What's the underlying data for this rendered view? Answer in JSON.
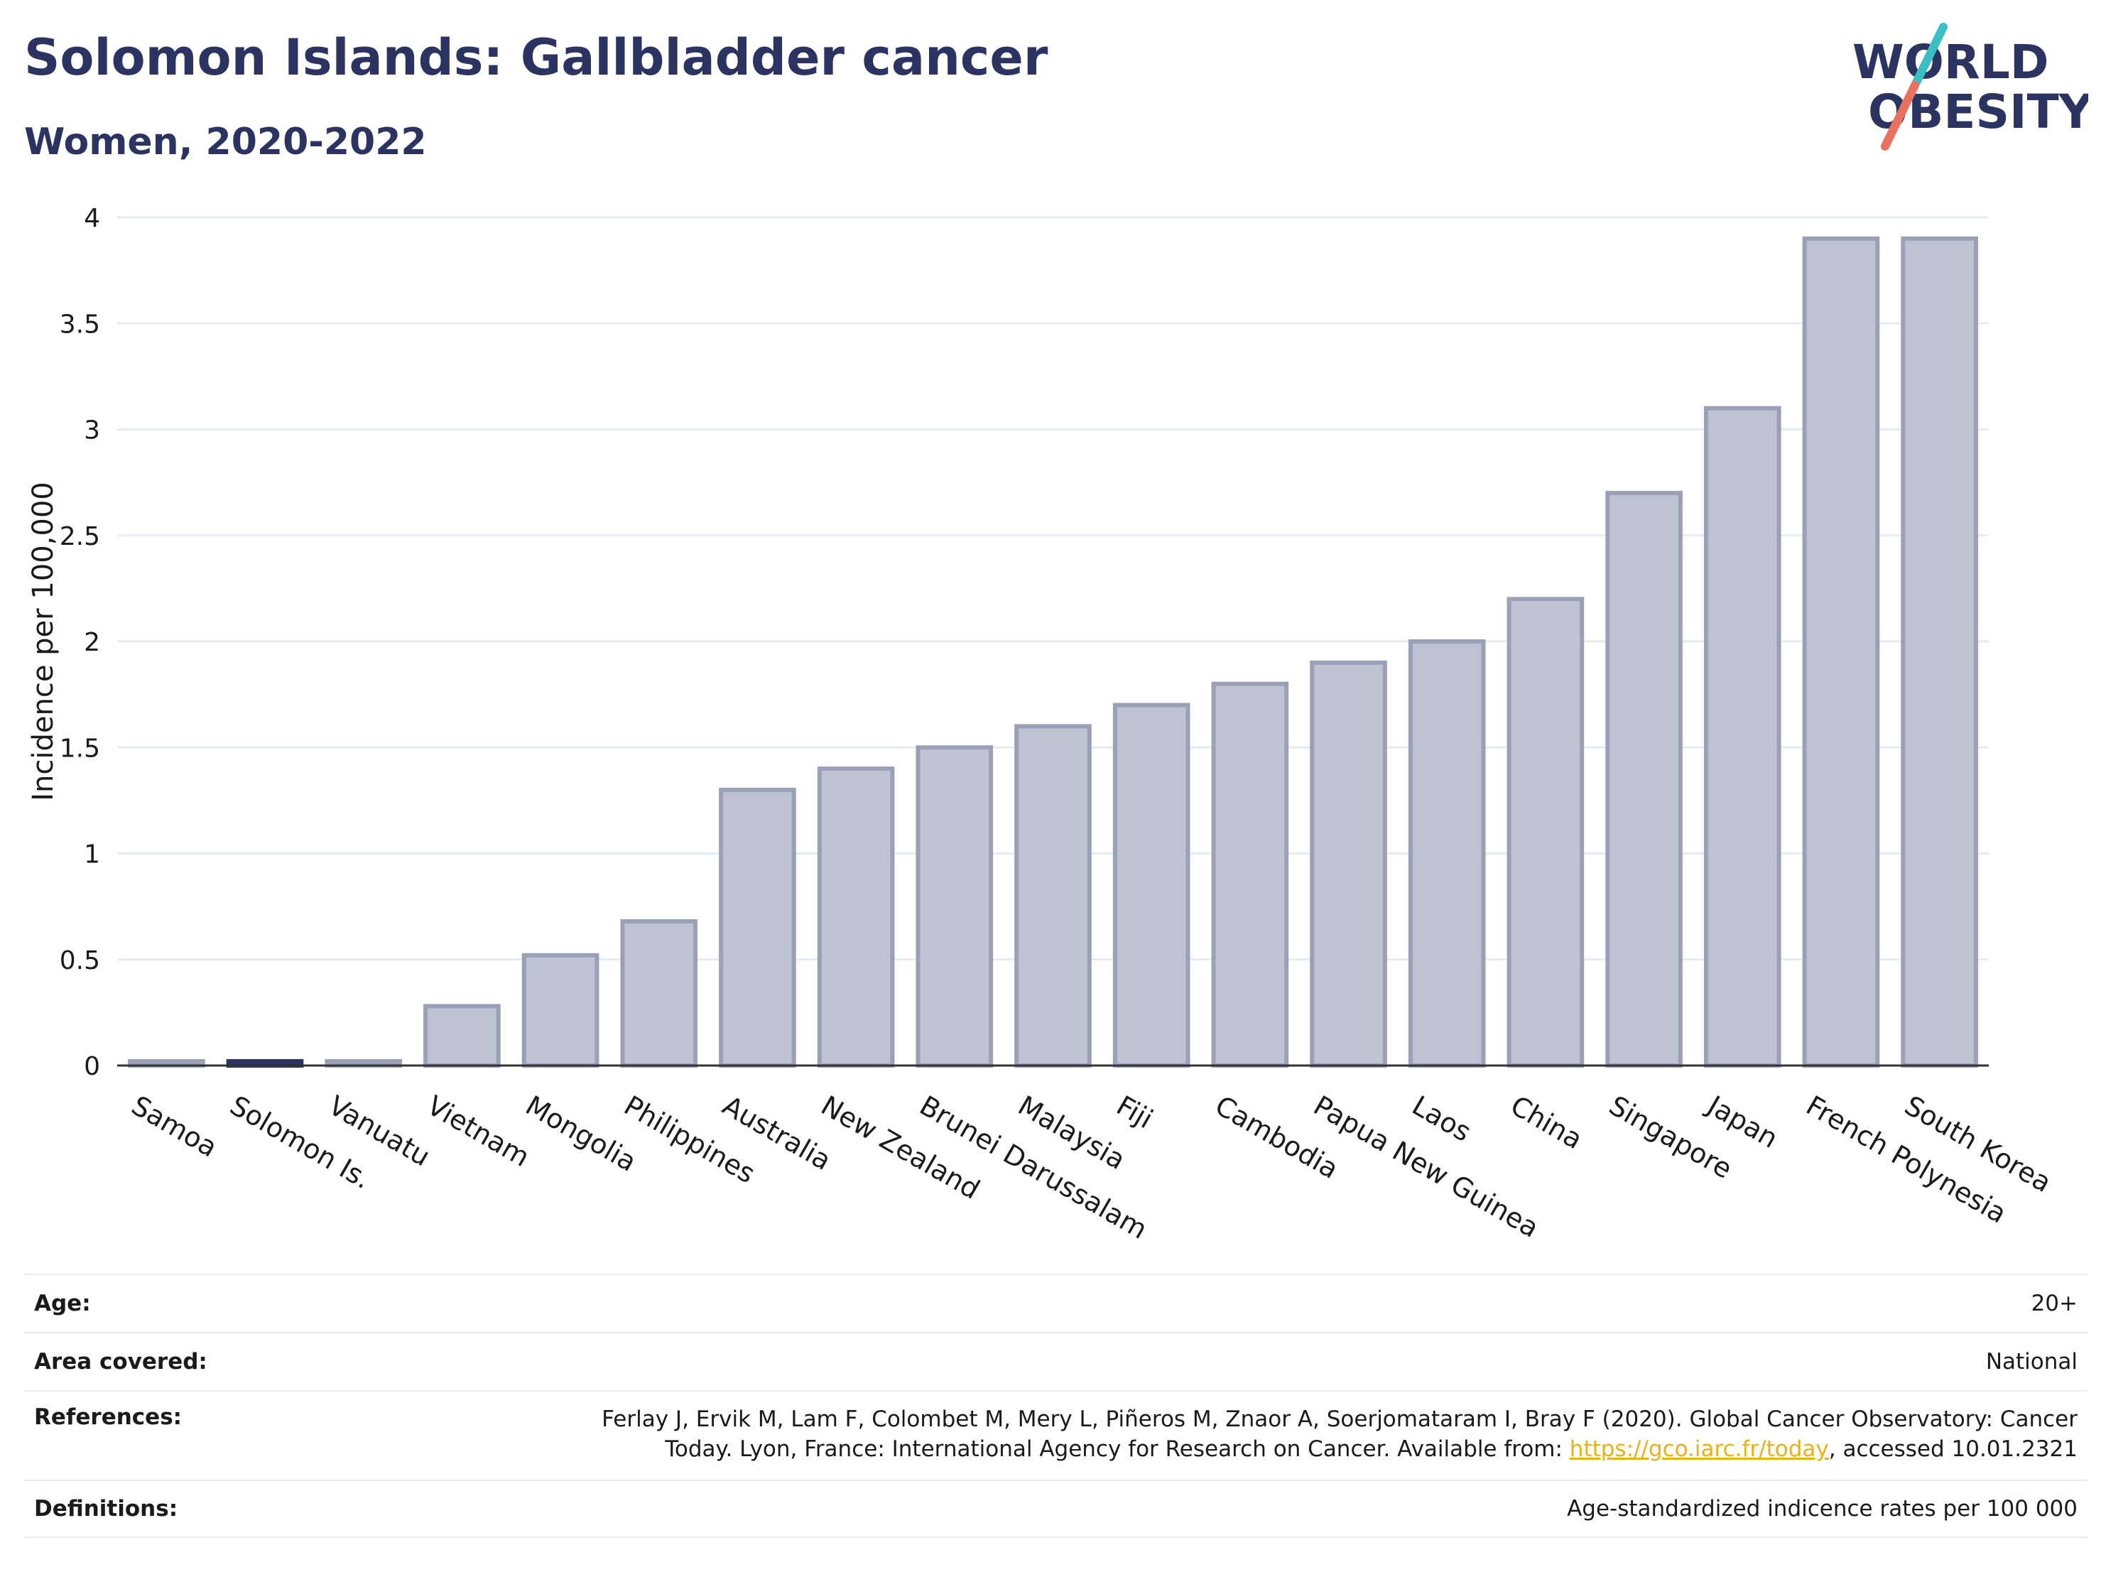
{
  "header": {
    "title": "Solomon Islands: Gallbladder cancer",
    "subtitle": "Women, 2020-2022"
  },
  "logo": {
    "line1": "WORLD",
    "line2": "OBESITY",
    "accent_teal": "#3bbfc4",
    "accent_coral": "#e8715f",
    "text_color": "#2b3360"
  },
  "chart_data": {
    "type": "bar",
    "title": "Solomon Islands: Gallbladder cancer",
    "subtitle": "Women, 2020-2022",
    "ylabel": "Incidence per 100,000",
    "xlabel": "",
    "ylim": [
      0,
      4
    ],
    "yticks": [
      0,
      0.5,
      1,
      1.5,
      2,
      2.5,
      3,
      3.5,
      4
    ],
    "ytick_labels": [
      "0",
      "0.5",
      "1",
      "1.5",
      "2",
      "2.5",
      "3",
      "3.5",
      "4"
    ],
    "grid": true,
    "highlight": "Solomon Is.",
    "bar_color": "#bfc2d0",
    "bar_edge_color": "#9aa0b8",
    "highlight_color": "#2b3360",
    "categories": [
      "Samoa",
      "Solomon Is.",
      "Vanuatu",
      "Vietnam",
      "Mongolia",
      "Philippines",
      "Australia",
      "New Zealand",
      "Brunei Darussalam",
      "Malaysia",
      "Fiji",
      "Cambodia",
      "Papua New Guinea",
      "Laos",
      "China",
      "Singapore",
      "Japan",
      "French Polynesia",
      "South Korea"
    ],
    "values": [
      0.01,
      0.01,
      0.01,
      0.28,
      0.52,
      0.68,
      1.3,
      1.4,
      1.5,
      1.6,
      1.7,
      1.8,
      1.9,
      2.0,
      2.2,
      2.7,
      3.1,
      3.9,
      3.9
    ]
  },
  "info_table": [
    {
      "label": "Age:",
      "value": "20+"
    },
    {
      "label": "Area covered:",
      "value": "National"
    },
    {
      "label": "References:",
      "value_line1": "Ferlay J, Ervik M, Lam F, Colombet M, Mery L, Piñeros M, Znaor A, Soerjomataram I, Bray F (2020). Global Cancer Observatory: Cancer",
      "value_line2_pre": "Today. Lyon, France: International Agency for Research on Cancer. Available from: ",
      "link_text": "https://gco.iarc.fr/today",
      "value_line2_post": ", accessed 10.01.2321"
    },
    {
      "label": "Definitions:",
      "value": "Age-standardized indicence rates per 100 000"
    }
  ]
}
